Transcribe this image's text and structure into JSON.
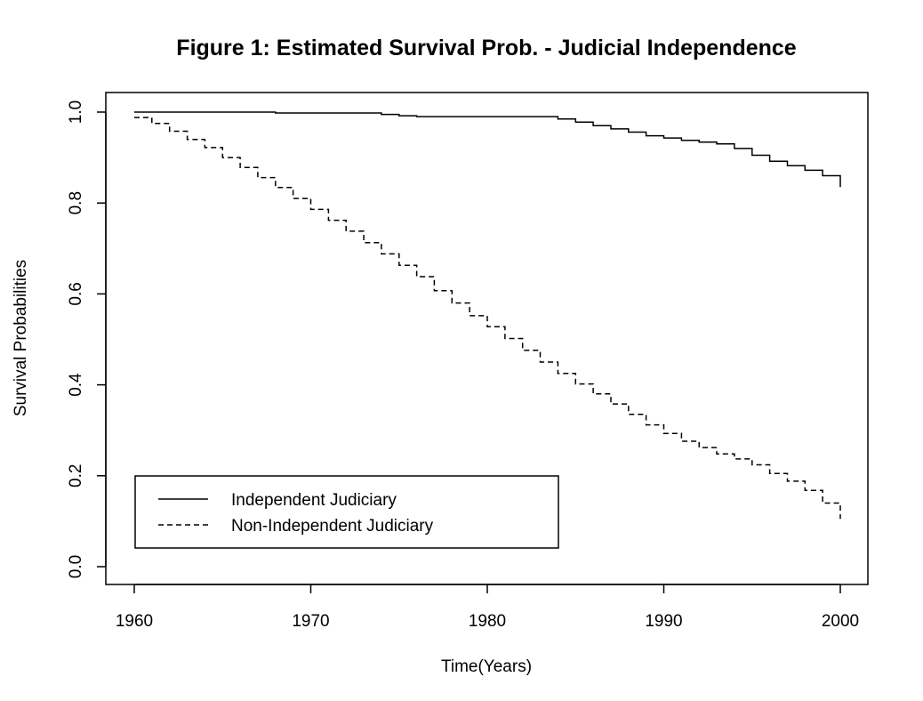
{
  "chart_data": {
    "type": "line",
    "title": "Figure 1: Estimated Survival Prob. - Judicial Independence",
    "xlabel": "Time(Years)",
    "ylabel": "Survival Probabilities",
    "xlim": [
      1960,
      2000
    ],
    "ylim": [
      0,
      1
    ],
    "x_ticks": [
      1960,
      1970,
      1980,
      1990,
      2000
    ],
    "x_tick_labels": [
      "1960",
      "1970",
      "1980",
      "1990",
      "2000"
    ],
    "y_ticks": [
      0,
      0.2,
      0.4,
      0.6,
      0.8,
      1.0
    ],
    "y_tick_labels": [
      "0.0",
      "0.2",
      "0.4",
      "0.6",
      "0.8",
      "1.0"
    ],
    "grid": false,
    "legend_position": "bottom-left",
    "series": [
      {
        "name": "Independent Judiciary",
        "line_style": "solid",
        "step": true,
        "x": [
          1960,
          1968,
          1974,
          1975,
          1976,
          1984,
          1985,
          1986,
          1987,
          1988,
          1989,
          1990,
          1991,
          1992,
          1993,
          1994,
          1995,
          1996,
          1997,
          1998,
          1999,
          2000
        ],
        "y": [
          1.0,
          0.998,
          0.995,
          0.992,
          0.99,
          0.985,
          0.978,
          0.97,
          0.963,
          0.956,
          0.948,
          0.943,
          0.938,
          0.934,
          0.93,
          0.92,
          0.905,
          0.892,
          0.882,
          0.872,
          0.86,
          0.835
        ]
      },
      {
        "name": "Non-Independent Judiciary",
        "line_style": "dashed",
        "step": true,
        "x": [
          1960,
          1961,
          1962,
          1963,
          1964,
          1965,
          1966,
          1967,
          1968,
          1969,
          1970,
          1971,
          1972,
          1973,
          1974,
          1975,
          1976,
          1977,
          1978,
          1979,
          1980,
          1981,
          1982,
          1983,
          1984,
          1985,
          1986,
          1987,
          1988,
          1989,
          1990,
          1991,
          1992,
          1993,
          1994,
          1995,
          1996,
          1997,
          1998,
          1999,
          2000
        ],
        "y": [
          0.988,
          0.975,
          0.958,
          0.94,
          0.922,
          0.9,
          0.878,
          0.856,
          0.834,
          0.81,
          0.786,
          0.762,
          0.738,
          0.713,
          0.688,
          0.663,
          0.638,
          0.607,
          0.58,
          0.552,
          0.528,
          0.502,
          0.476,
          0.45,
          0.425,
          0.402,
          0.38,
          0.358,
          0.335,
          0.312,
          0.293,
          0.276,
          0.262,
          0.248,
          0.237,
          0.224,
          0.205,
          0.188,
          0.168,
          0.14,
          0.105
        ]
      }
    ]
  }
}
